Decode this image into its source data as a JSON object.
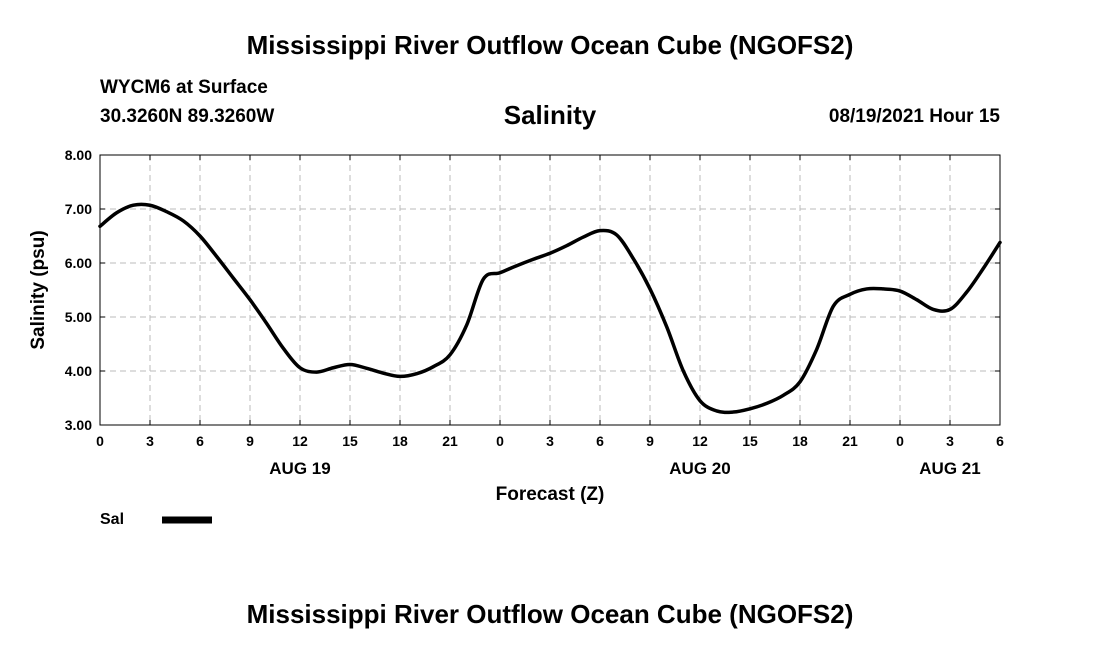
{
  "header": {
    "title": "Mississippi River Outflow Ocean Cube (NGOFS2)",
    "station": "WYCM6 at Surface",
    "coords": "30.3260N  89.3260W",
    "variable": "Salinity",
    "datetime": "08/19/2021 Hour 15"
  },
  "footer": {
    "title": "Mississippi River Outflow Ocean Cube (NGOFS2)"
  },
  "colors": {
    "line": "#000000",
    "grid": "#bbbbbb",
    "axis": "#000000"
  },
  "chart_data": {
    "type": "line",
    "title": "Salinity",
    "xlabel": "Forecast (Z)",
    "ylabel": "Salinity (psu)",
    "xlim": [
      0,
      54
    ],
    "ylim": [
      3.0,
      8.0
    ],
    "grid": true,
    "x_ticks": [
      0,
      3,
      6,
      9,
      12,
      15,
      18,
      21,
      24,
      27,
      30,
      33,
      36,
      39,
      42,
      45,
      48,
      51,
      54
    ],
    "x_tick_labels": [
      "0",
      "3",
      "6",
      "9",
      "12",
      "15",
      "18",
      "21",
      "0",
      "3",
      "6",
      "9",
      "12",
      "15",
      "18",
      "21",
      "0",
      "3",
      "6"
    ],
    "y_ticks": [
      3.0,
      4.0,
      5.0,
      6.0,
      7.0,
      8.0
    ],
    "y_tick_labels": [
      "3.00",
      "4.00",
      "5.00",
      "6.00",
      "7.00",
      "8.00"
    ],
    "date_labels": [
      {
        "x": 12,
        "text": "AUG 19"
      },
      {
        "x": 36,
        "text": "AUG 20"
      },
      {
        "x": 51,
        "text": "AUG 21"
      }
    ],
    "legend": [
      {
        "name": "Sal",
        "position": "bottom-left"
      }
    ],
    "series": [
      {
        "name": "Sal",
        "x": [
          0,
          1,
          2,
          3,
          4,
          5,
          6,
          7,
          8,
          9,
          10,
          11,
          12,
          13,
          14,
          15,
          16,
          17,
          18,
          19,
          20,
          21,
          22,
          23,
          24,
          25,
          26,
          27,
          28,
          29,
          30,
          31,
          32,
          33,
          34,
          35,
          36,
          37,
          38,
          39,
          40,
          41,
          42,
          43,
          44,
          45,
          46,
          47,
          48,
          49,
          50,
          51,
          52,
          53,
          54
        ],
        "values": [
          6.68,
          6.93,
          7.07,
          7.07,
          6.95,
          6.78,
          6.5,
          6.12,
          5.72,
          5.32,
          4.88,
          4.42,
          4.06,
          3.98,
          4.06,
          4.12,
          4.05,
          3.96,
          3.9,
          3.95,
          4.08,
          4.3,
          4.85,
          5.7,
          5.82,
          5.95,
          6.07,
          6.18,
          6.32,
          6.48,
          6.6,
          6.52,
          6.08,
          5.52,
          4.82,
          4.0,
          3.45,
          3.26,
          3.24,
          3.3,
          3.4,
          3.55,
          3.8,
          4.4,
          5.2,
          5.42,
          5.52,
          5.52,
          5.48,
          5.32,
          5.14,
          5.14,
          5.46,
          5.9,
          6.38
        ]
      }
    ]
  }
}
